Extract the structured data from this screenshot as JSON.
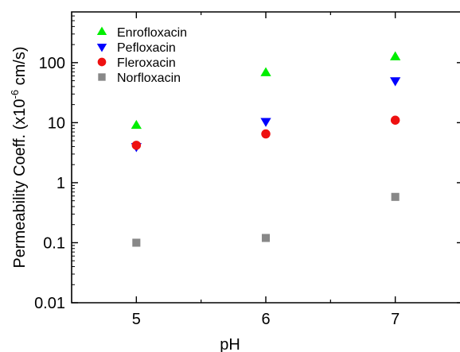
{
  "chart_data": {
    "type": "scatter",
    "x_axis": {
      "label": "pH",
      "ticks": [
        "5",
        "6",
        "7"
      ],
      "range": [
        4.5,
        7.5
      ],
      "scale": "linear"
    },
    "y_axis": {
      "label_prefix": "Permeability Coeff. (x10",
      "label_exponent": "-6",
      "label_suffix": " cm/s)",
      "ticks": [
        "0.01",
        "0.1",
        "1",
        "10",
        "100"
      ],
      "tick_values": [
        0.01,
        0.1,
        1,
        10,
        100
      ],
      "range": [
        0.01,
        700
      ],
      "scale": "log"
    },
    "grid": false,
    "legend_position": "top-left",
    "series": [
      {
        "name": "Enrofloxacin",
        "marker": "triangle-up",
        "color": "#00ee00",
        "x": [
          5,
          6,
          7
        ],
        "y": [
          9,
          68,
          125
        ]
      },
      {
        "name": "Pefloxacin",
        "marker": "triangle-down",
        "color": "#0000ff",
        "x": [
          5,
          6,
          7
        ],
        "y": [
          4,
          10.5,
          50
        ]
      },
      {
        "name": "Fleroxacin",
        "marker": "circle",
        "color": "#ee1111",
        "x": [
          5,
          6,
          7
        ],
        "y": [
          4.2,
          6.5,
          11
        ]
      },
      {
        "name": "Norfloxacin",
        "marker": "square",
        "color": "#888888",
        "x": [
          5,
          6,
          7
        ],
        "y": [
          0.1,
          0.12,
          0.58
        ]
      }
    ]
  }
}
